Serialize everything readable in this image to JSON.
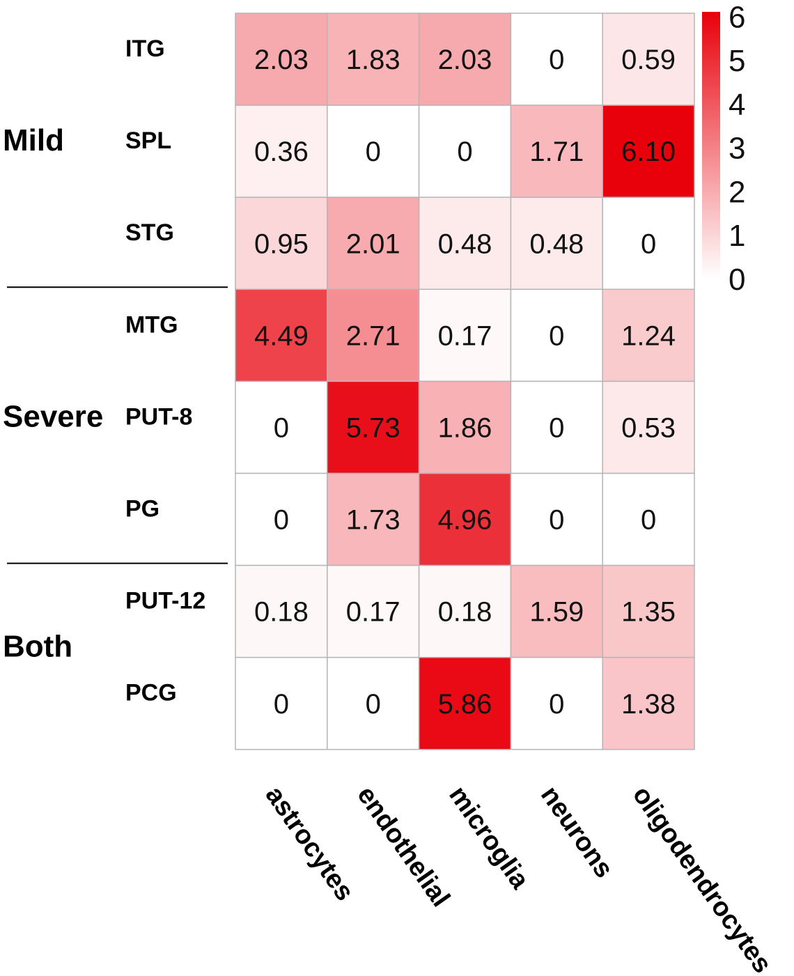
{
  "chart_data": {
    "type": "heatmap",
    "title": "",
    "columns": [
      "astrocytes",
      "endothelial",
      "microglia",
      "neurons",
      "oligodendrocytes"
    ],
    "rows": [
      "ITG",
      "SPL",
      "STG",
      "MTG",
      "PUT-8",
      "PG",
      "PUT-12",
      "PCG"
    ],
    "groups": [
      {
        "name": "Mild",
        "rows": [
          "ITG",
          "SPL",
          "STG"
        ]
      },
      {
        "name": "Severe",
        "rows": [
          "MTG",
          "PUT-8",
          "PG"
        ]
      },
      {
        "name": "Both",
        "rows": [
          "PUT-12",
          "PCG"
        ]
      }
    ],
    "values": [
      [
        2.03,
        1.83,
        2.03,
        0,
        0.59
      ],
      [
        0.36,
        0,
        0,
        1.71,
        6.1
      ],
      [
        0.95,
        2.01,
        0.48,
        0.48,
        0
      ],
      [
        4.49,
        2.71,
        0.17,
        0,
        1.24
      ],
      [
        0,
        5.73,
        1.86,
        0,
        0.53
      ],
      [
        0,
        1.73,
        4.96,
        0,
        0
      ],
      [
        0.18,
        0.17,
        0.18,
        1.59,
        1.35
      ],
      [
        0,
        0,
        5.86,
        0,
        1.38
      ]
    ],
    "labels": [
      [
        "2.03",
        "1.83",
        "2.03",
        "0",
        "0.59"
      ],
      [
        "0.36",
        "0",
        "0",
        "1.71",
        "6.10"
      ],
      [
        "0.95",
        "2.01",
        "0.48",
        "0.48",
        "0"
      ],
      [
        "4.49",
        "2.71",
        "0.17",
        "0",
        "1.24"
      ],
      [
        "0",
        "5.73",
        "1.86",
        "0",
        "0.53"
      ],
      [
        "0",
        "1.73",
        "4.96",
        "0",
        "0"
      ],
      [
        "0.18",
        "0.17",
        "0.18",
        "1.59",
        "1.35"
      ],
      [
        "0",
        "0",
        "5.86",
        "0",
        "1.38"
      ]
    ],
    "colorscale": {
      "min": 0,
      "max": 6.1,
      "low_color": "#ffffff",
      "high_color": "#e8000b"
    },
    "legend": {
      "ticks": [
        "0",
        "1",
        "2",
        "3",
        "4",
        "5",
        "6"
      ],
      "tick_values": [
        0,
        1,
        2,
        3,
        4,
        5,
        6
      ],
      "placement": "right"
    }
  }
}
